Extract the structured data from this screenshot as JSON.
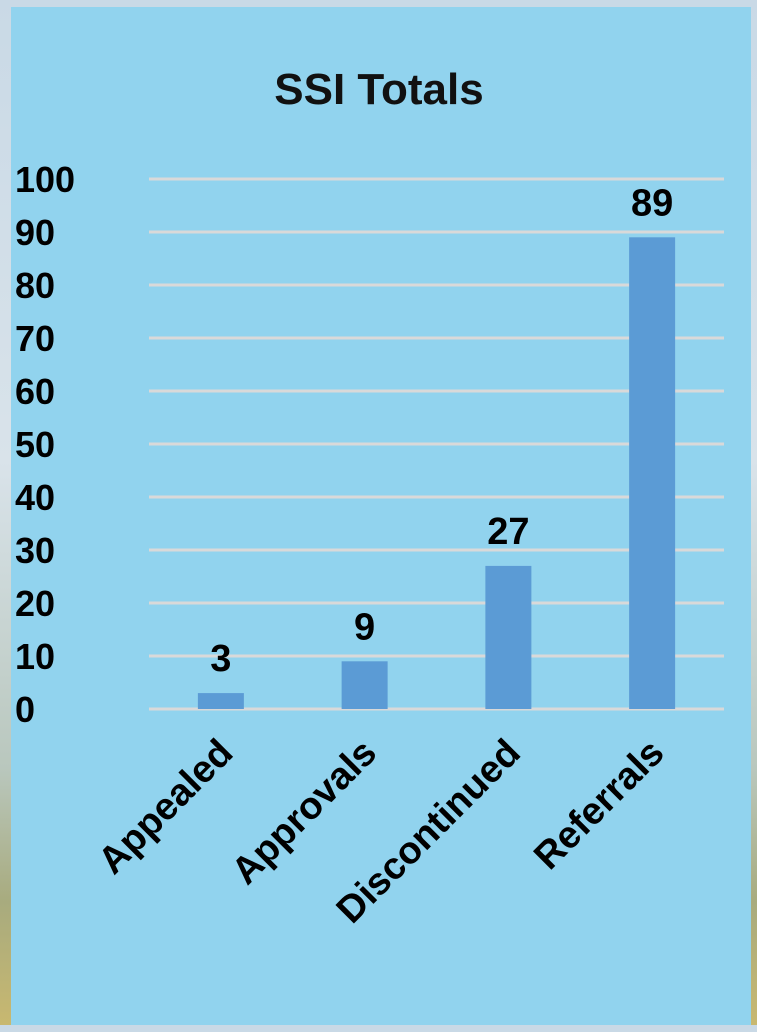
{
  "colors": {
    "panel_background": "#91d3ee",
    "bar_fill": "#5b9bd5",
    "gridline": "#d9d9d9",
    "text": "#000000"
  },
  "chart_data": {
    "type": "bar",
    "title": "SSI Totals",
    "xlabel": "",
    "ylabel": "",
    "categories": [
      "Appealed",
      "Approvals",
      "Discontinued",
      "Referrals"
    ],
    "values": [
      3,
      9,
      27,
      89
    ],
    "data_labels": [
      "3",
      "9",
      "27",
      "89"
    ],
    "ylim": [
      0,
      100
    ],
    "yticks": [
      0,
      10,
      20,
      30,
      40,
      50,
      60,
      70,
      80,
      90,
      100
    ],
    "ytick_labels": [
      "0",
      "10",
      "20",
      "30",
      "40",
      "50",
      "60",
      "70",
      "80",
      "90",
      "100"
    ],
    "grid": true,
    "legend": "none",
    "category_label_rotation": "diagonal"
  }
}
